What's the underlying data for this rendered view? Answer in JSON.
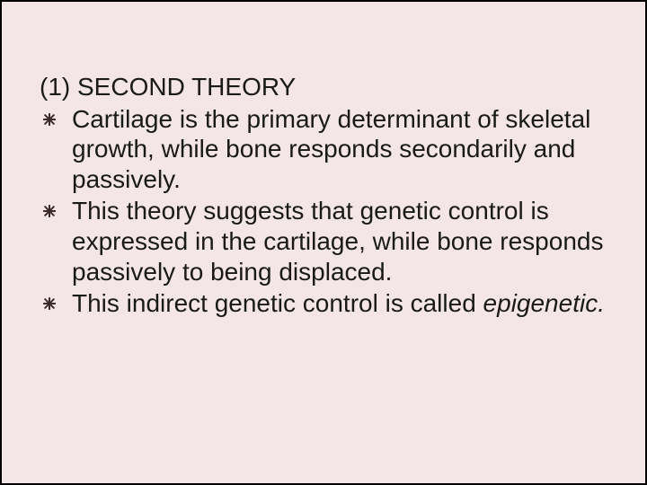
{
  "slide": {
    "background_color": "#f4e6e6",
    "border_color": "#000000",
    "text_color": "#1a1a1a",
    "heading_font_family": "Arial",
    "body_font_family": "Arial",
    "heading_fontsize": 28,
    "body_fontsize": 28,
    "bullet_color": "#3d2a2a",
    "bullet_glyph": "eight-spoked-asterisk",
    "heading": "(1) SECOND THEORY",
    "bullets": [
      {
        "leading_space": true,
        "text": " Cartilage is the primary determinant of skeletal growth, while bone responds secondarily and passively."
      },
      {
        "leading_space": false,
        "text": "This theory suggests that genetic control is expressed in the cartilage, while bone responds passively to being displaced."
      },
      {
        "leading_space": false,
        "text_parts": [
          {
            "text": "This indirect genetic control is called ",
            "italic": false
          },
          {
            "text": "epigenetic.",
            "italic": true
          }
        ]
      }
    ]
  }
}
